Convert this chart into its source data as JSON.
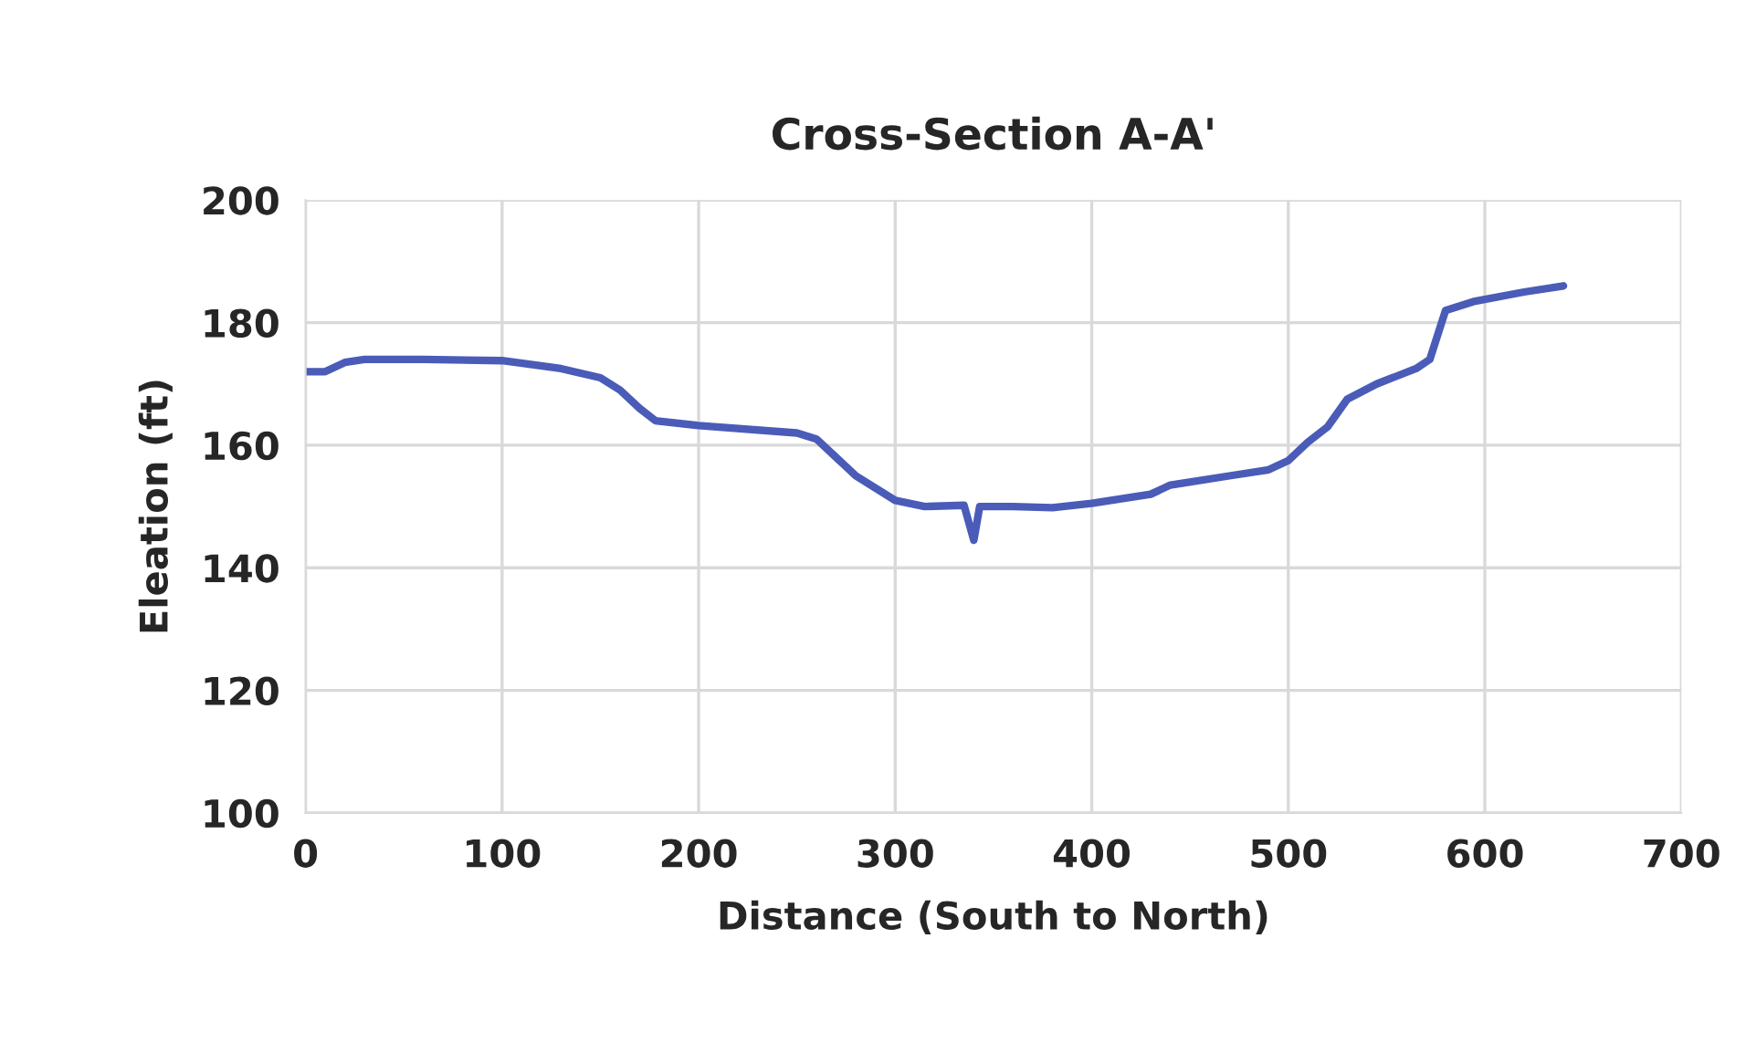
{
  "chart_data": {
    "type": "line",
    "title": "Cross-Section A-A'",
    "xlabel": "Distance (South to North)",
    "ylabel": "Eleation (ft)",
    "series": [
      {
        "color": "#4a5cb8",
        "x": [
          0,
          10,
          20,
          30,
          60,
          100,
          130,
          150,
          160,
          170,
          178,
          200,
          250,
          260,
          270,
          280,
          300,
          315,
          335,
          340,
          343,
          360,
          380,
          400,
          430,
          440,
          470,
          490,
          500,
          510,
          520,
          530,
          545,
          565,
          572,
          580,
          595,
          620,
          640
        ],
        "values": [
          172,
          172,
          173.5,
          174,
          174,
          173.8,
          172.5,
          171,
          169,
          166,
          164,
          163.2,
          162,
          161,
          158,
          155,
          151,
          150,
          150.2,
          144.5,
          150,
          150,
          149.8,
          150.5,
          152,
          153.5,
          155,
          156,
          157.5,
          160.5,
          163,
          167.5,
          170,
          172.5,
          174,
          182,
          183.5,
          185,
          186
        ]
      }
    ],
    "xlim": [
      0,
      700
    ],
    "xticks": [
      0,
      100,
      200,
      300,
      400,
      500,
      600,
      700
    ],
    "ylim": [
      100,
      200
    ],
    "yticks": [
      100,
      120,
      140,
      160,
      180,
      200
    ],
    "grid": true,
    "marker": "none",
    "line_style": "solid"
  }
}
